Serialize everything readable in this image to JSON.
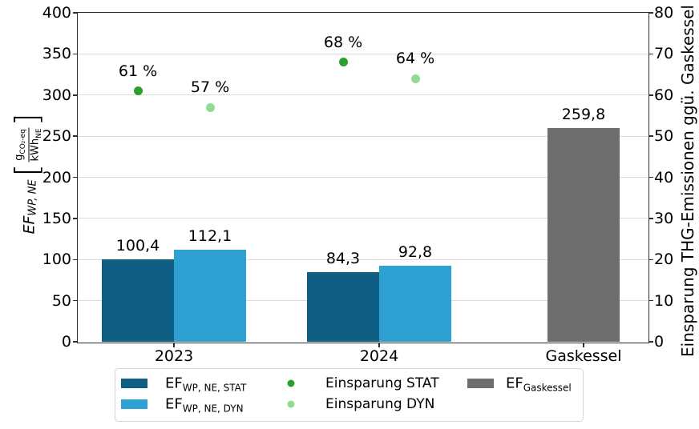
{
  "colors": {
    "grid": "#dcdcdc",
    "spine": "#2e2e2e",
    "background": "#ffffff"
  },
  "chart_data": {
    "type": "bar",
    "categories": [
      "2023",
      "2024",
      "Gaskessel"
    ],
    "left_axis": {
      "label_symbol": "EF",
      "label_symbol_sub": "WP, NE",
      "unit_numerator": "g",
      "unit_numerator_sub": "CO₂-eq",
      "unit_denominator": "kWh",
      "unit_denominator_sub": "NE",
      "min": 0,
      "max": 400,
      "step": 50
    },
    "right_axis": {
      "label": "Einsparung THG-Emissionen ggü. Gaskessel",
      "min": 0,
      "max": 80,
      "step": 10
    },
    "series": {
      "EF_WP_NE_STAT": {
        "color": "#0e5f83",
        "offset": -1,
        "kind": "bar"
      },
      "EF_WP_NE_DYN": {
        "color": "#2ea0d2",
        "offset": 1,
        "kind": "bar"
      },
      "EF_Gaskessel": {
        "color": "#6e6e6e",
        "offset": 0,
        "kind": "bar"
      },
      "Einsparung_STAT": {
        "color": "#2ca02c",
        "offset": -1,
        "kind": "dot"
      },
      "Einsparung_DYN": {
        "color": "#90dc90",
        "offset": 1,
        "kind": "dot"
      }
    },
    "bars": [
      {
        "category": "2023",
        "series": "EF_WP_NE_STAT",
        "value": 100.4,
        "label": "100,4"
      },
      {
        "category": "2023",
        "series": "EF_WP_NE_DYN",
        "value": 112.1,
        "label": "112,1"
      },
      {
        "category": "2024",
        "series": "EF_WP_NE_STAT",
        "value": 84.3,
        "label": "84,3"
      },
      {
        "category": "2024",
        "series": "EF_WP_NE_DYN",
        "value": 92.8,
        "label": "92,8"
      },
      {
        "category": "Gaskessel",
        "series": "EF_Gaskessel",
        "value": 259.8,
        "label": "259,8"
      }
    ],
    "points": [
      {
        "category": "2023",
        "series": "Einsparung_STAT",
        "value": 61,
        "label": "61 %"
      },
      {
        "category": "2023",
        "series": "Einsparung_DYN",
        "value": 57,
        "label": "57 %"
      },
      {
        "category": "2024",
        "series": "Einsparung_STAT",
        "value": 68,
        "label": "68 %"
      },
      {
        "category": "2024",
        "series": "Einsparung_DYN",
        "value": 64,
        "label": "64 %"
      }
    ],
    "legend_position": "bottom"
  },
  "legend": {
    "items": [
      {
        "series": "EF_WP_NE_STAT",
        "main": "EF",
        "sub": "WP, NE, STAT"
      },
      {
        "series": "EF_WP_NE_DYN",
        "main": "EF",
        "sub": "WP, NE, DYN"
      },
      {
        "series": "Einsparung_STAT",
        "label": "Einsparung STAT"
      },
      {
        "series": "Einsparung_DYN",
        "label": "Einsparung DYN"
      },
      {
        "series": "EF_Gaskessel",
        "main": "EF",
        "sub": "Gaskessel"
      }
    ]
  }
}
